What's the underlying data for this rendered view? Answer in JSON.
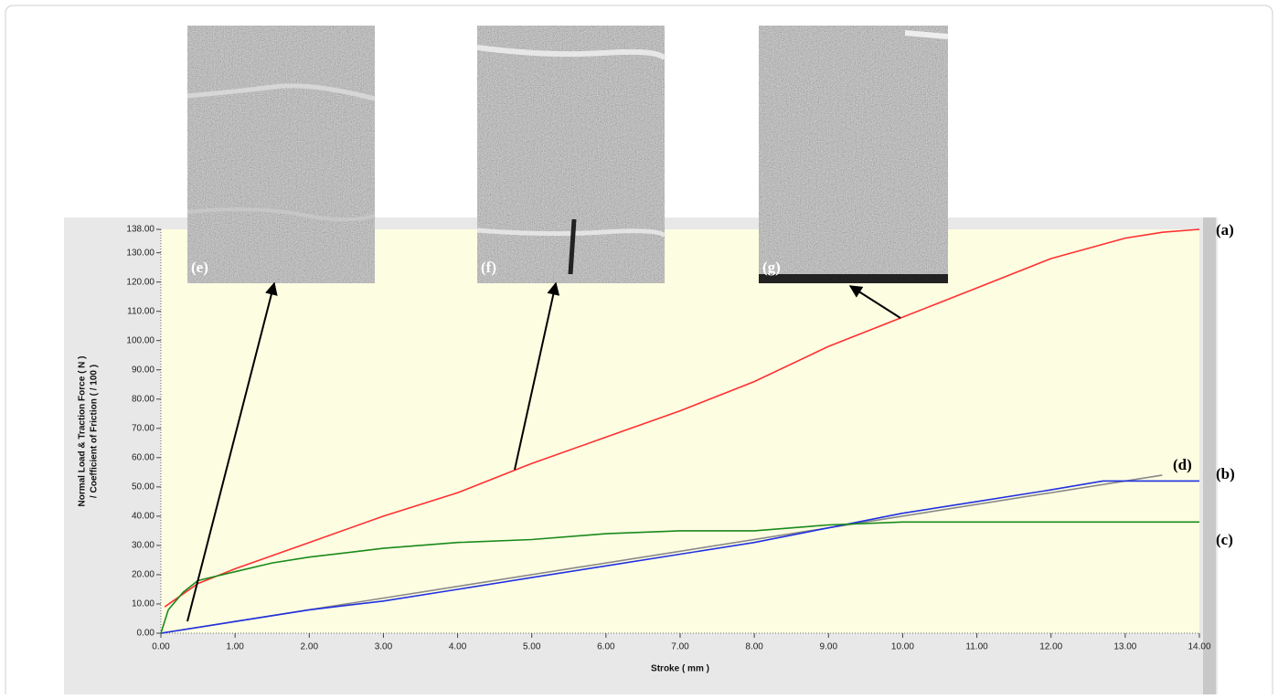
{
  "chart_data": {
    "type": "line",
    "xlabel": "Stroke ( mm )",
    "ylabel": [
      "Normal Load & Traction Force ( N )",
      "/ Coefficient of Friction ( / 100 )"
    ],
    "xlim": [
      0,
      14
    ],
    "ylim": [
      0,
      138
    ],
    "xticks": [
      {
        "value": 0,
        "label": "0.00"
      },
      {
        "value": 1,
        "label": "1.00"
      },
      {
        "value": 2,
        "label": "2.00"
      },
      {
        "value": 3,
        "label": "3.00"
      },
      {
        "value": 4,
        "label": "4.00"
      },
      {
        "value": 5,
        "label": "5.00"
      },
      {
        "value": 6,
        "label": "6.00"
      },
      {
        "value": 7,
        "label": "7.00"
      },
      {
        "value": 8,
        "label": "8.00"
      },
      {
        "value": 9,
        "label": "9.00"
      },
      {
        "value": 10,
        "label": "10.00"
      },
      {
        "value": 11,
        "label": "11.00"
      },
      {
        "value": 12,
        "label": "12.00"
      },
      {
        "value": 13,
        "label": "13.00"
      },
      {
        "value": 14,
        "label": "14.00"
      }
    ],
    "yticks": [
      {
        "value": 0,
        "label": "0.00"
      },
      {
        "value": 10,
        "label": "10.00"
      },
      {
        "value": 20,
        "label": "20.00"
      },
      {
        "value": 30,
        "label": "30.00"
      },
      {
        "value": 40,
        "label": "40.00"
      },
      {
        "value": 50,
        "label": "50.00"
      },
      {
        "value": 60,
        "label": "60.00"
      },
      {
        "value": 70,
        "label": "70.00"
      },
      {
        "value": 80,
        "label": "80.00"
      },
      {
        "value": 90,
        "label": "90.00"
      },
      {
        "value": 100,
        "label": "100.00"
      },
      {
        "value": 110,
        "label": "110.00"
      },
      {
        "value": 120,
        "label": "120.00"
      },
      {
        "value": 130,
        "label": "130.00"
      },
      {
        "value": 138,
        "label": "138.00"
      }
    ],
    "grid": false,
    "series": [
      {
        "name": "(a)",
        "color": "#ff3030",
        "x": [
          0.05,
          0.5,
          1,
          2,
          3,
          4,
          5,
          6,
          7,
          8,
          9,
          10,
          11,
          12,
          13,
          13.5,
          14
        ],
        "values": [
          9,
          17,
          22,
          31,
          40,
          48,
          58,
          67,
          76,
          86,
          98,
          108,
          118,
          128,
          135,
          137,
          138
        ]
      },
      {
        "name": "(d)",
        "color": "#888888",
        "x": [
          0,
          13.5
        ],
        "values": [
          0,
          54
        ]
      },
      {
        "name": "(b)",
        "color": "#2030e0",
        "x": [
          0,
          1,
          2,
          3,
          4,
          5,
          6,
          7,
          8,
          9,
          10,
          11,
          12,
          12.7,
          13,
          14
        ],
        "values": [
          0,
          4,
          8,
          11,
          15,
          19,
          23,
          27,
          31,
          36,
          41,
          45,
          49,
          52,
          52,
          52
        ]
      },
      {
        "name": "(c)",
        "color": "#1a8a1a",
        "x": [
          0,
          0.1,
          0.3,
          0.5,
          1,
          1.5,
          2,
          3,
          4,
          5,
          6,
          7,
          8,
          9,
          10,
          11,
          12,
          13,
          14
        ],
        "values": [
          0,
          8,
          14,
          18,
          21,
          24,
          26,
          29,
          31,
          32,
          34,
          35,
          35,
          37,
          38,
          38,
          38,
          38,
          38
        ]
      }
    ],
    "insets": [
      "(e)",
      "(f)",
      "(g)"
    ]
  }
}
